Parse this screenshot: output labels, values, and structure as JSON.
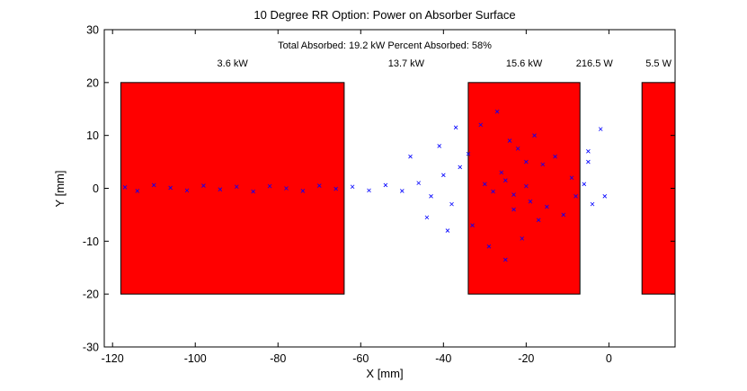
{
  "chart_data": {
    "type": "scatter",
    "title": "10 Degree RR Option: Power on Absorber Surface",
    "subtitle": "Total Absorbed: 19.2 kW Percent Absorbed: 58%",
    "xlabel": "X [mm]",
    "ylabel": "Y [mm]",
    "xlim": [
      -122,
      16
    ],
    "ylim": [
      -30,
      30
    ],
    "xticks": [
      -120,
      -100,
      -80,
      -60,
      -40,
      -20,
      0
    ],
    "yticks": [
      -30,
      -20,
      -10,
      0,
      10,
      20,
      30
    ],
    "grid": false,
    "absorbers": [
      {
        "x0": -118,
        "x1": -64,
        "y0": -20,
        "y1": 20,
        "color": "#ff0000"
      },
      {
        "x0": -34,
        "x1": -7,
        "y0": -20,
        "y1": 20,
        "color": "#ff0000"
      },
      {
        "x0": 8,
        "x1": 16,
        "y0": -20,
        "y1": 20,
        "color": "#ff0000"
      }
    ],
    "region_labels": [
      {
        "text": "3.6 kW",
        "x": -91,
        "y": 23
      },
      {
        "text": "13.7 kW",
        "x": -49,
        "y": 23
      },
      {
        "text": "15.6 kW",
        "x": -20.5,
        "y": 23
      },
      {
        "text": "216.5 W",
        "x": -3.5,
        "y": 23
      },
      {
        "text": "5.5 W",
        "x": 12,
        "y": 23
      }
    ],
    "series": [
      {
        "marker": "x",
        "color": "#0000ff",
        "points": [
          [
            -117,
            0.2
          ],
          [
            -114,
            -0.5
          ],
          [
            -110,
            0.6
          ],
          [
            -106,
            0.1
          ],
          [
            -102,
            -0.4
          ],
          [
            -98,
            0.5
          ],
          [
            -94,
            -0.2
          ],
          [
            -90,
            0.3
          ],
          [
            -86,
            -0.6
          ],
          [
            -82,
            0.4
          ],
          [
            -78,
            0.0
          ],
          [
            -74,
            -0.5
          ],
          [
            -70,
            0.5
          ],
          [
            -66,
            -0.1
          ],
          [
            -62,
            0.3
          ],
          [
            -58,
            -0.4
          ],
          [
            -54,
            0.6
          ],
          [
            -50,
            -0.5
          ],
          [
            -46,
            1.0
          ],
          [
            -43,
            -1.5
          ],
          [
            -40,
            2.5
          ],
          [
            -38,
            -3.0
          ],
          [
            -36,
            4.0
          ],
          [
            -48,
            6.0
          ],
          [
            -44,
            -5.5
          ],
          [
            -41,
            8.0
          ],
          [
            -37,
            11.5
          ],
          [
            -39,
            -8.0
          ],
          [
            -34,
            6.5
          ],
          [
            -33,
            -7.0
          ],
          [
            -31,
            12.0
          ],
          [
            -29,
            -11.0
          ],
          [
            -27,
            14.5
          ],
          [
            -26,
            3.0
          ],
          [
            -25,
            -13.5
          ],
          [
            -24,
            9.0
          ],
          [
            -23,
            -4.0
          ],
          [
            -22,
            7.5
          ],
          [
            -21,
            -9.5
          ],
          [
            -20,
            5.0
          ],
          [
            -19,
            -2.5
          ],
          [
            -18,
            10.0
          ],
          [
            -17,
            -6.0
          ],
          [
            -16,
            4.5
          ],
          [
            -15,
            -3.5
          ],
          [
            -13,
            6.0
          ],
          [
            -11,
            -5.0
          ],
          [
            -9,
            2.0
          ],
          [
            -8,
            -1.5
          ],
          [
            -6,
            0.8
          ],
          [
            -5,
            5.0
          ],
          [
            -4,
            -3.0
          ],
          [
            -5,
            7.0
          ],
          [
            -2,
            11.2
          ],
          [
            -1,
            -1.5
          ],
          [
            -30,
            0.8
          ],
          [
            -28,
            -0.6
          ],
          [
            -25,
            1.5
          ],
          [
            -23,
            -1.2
          ],
          [
            -20,
            0.4
          ]
        ]
      }
    ]
  }
}
